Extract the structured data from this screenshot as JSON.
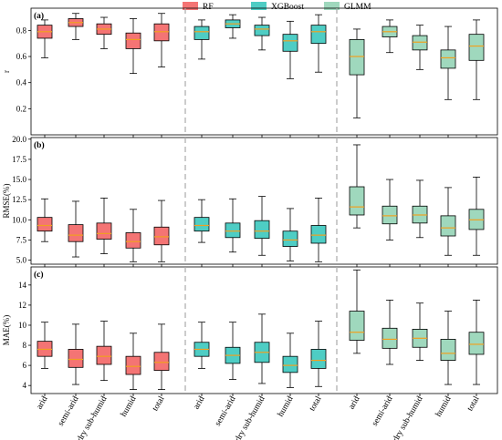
{
  "legend": [
    {
      "name": "RF",
      "color": "#f47474"
    },
    {
      "name": "XGBoost",
      "color": "#4ecdc4"
    },
    {
      "name": "GLMM",
      "color": "#9fd8bd"
    }
  ],
  "colors": {
    "median": "#f0a020",
    "separator": "#aaaaaa",
    "frame": "#000000"
  },
  "categories": [
    "arid",
    "semi-arid",
    "dry sub-humid",
    "humid",
    "total"
  ],
  "chart_data": [
    {
      "type": "box",
      "panel": "(a)",
      "ylabel": "r",
      "ylim": [
        0.0,
        0.97
      ],
      "yticks": [
        0.2,
        0.4,
        0.6,
        0.8
      ],
      "tick_labels": [
        "0.2",
        "0.4",
        "0.6",
        "0.8"
      ],
      "categories": [
        "arid",
        "semi-arid",
        "dry sub-humid",
        "humid",
        "total"
      ],
      "series": [
        {
          "name": "RF",
          "boxes": [
            {
              "min": 0.59,
              "q1": 0.74,
              "median": 0.79,
              "q3": 0.84,
              "max": 0.88
            },
            {
              "min": 0.73,
              "q1": 0.83,
              "median": 0.86,
              "q3": 0.89,
              "max": 0.93
            },
            {
              "min": 0.66,
              "q1": 0.77,
              "median": 0.81,
              "q3": 0.85,
              "max": 0.9
            },
            {
              "min": 0.47,
              "q1": 0.66,
              "median": 0.73,
              "q3": 0.78,
              "max": 0.89
            },
            {
              "min": 0.52,
              "q1": 0.72,
              "median": 0.79,
              "q3": 0.85,
              "max": 0.93
            }
          ]
        },
        {
          "name": "XGBoost",
          "boxes": [
            {
              "min": 0.58,
              "q1": 0.73,
              "median": 0.79,
              "q3": 0.83,
              "max": 0.88
            },
            {
              "min": 0.74,
              "q1": 0.82,
              "median": 0.85,
              "q3": 0.88,
              "max": 0.92
            },
            {
              "min": 0.65,
              "q1": 0.76,
              "median": 0.81,
              "q3": 0.84,
              "max": 0.9
            },
            {
              "min": 0.43,
              "q1": 0.64,
              "median": 0.72,
              "q3": 0.77,
              "max": 0.87
            },
            {
              "min": 0.48,
              "q1": 0.7,
              "median": 0.79,
              "q3": 0.84,
              "max": 0.92
            }
          ]
        },
        {
          "name": "GLMM",
          "boxes": [
            {
              "min": 0.13,
              "q1": 0.46,
              "median": 0.6,
              "q3": 0.73,
              "max": 0.81
            },
            {
              "min": 0.63,
              "q1": 0.75,
              "median": 0.79,
              "q3": 0.83,
              "max": 0.88
            },
            {
              "min": 0.5,
              "q1": 0.65,
              "median": 0.71,
              "q3": 0.76,
              "max": 0.84
            },
            {
              "min": 0.27,
              "q1": 0.51,
              "median": 0.59,
              "q3": 0.65,
              "max": 0.83
            },
            {
              "min": 0.27,
              "q1": 0.57,
              "median": 0.68,
              "q3": 0.77,
              "max": 0.88
            }
          ]
        }
      ]
    },
    {
      "type": "box",
      "panel": "(b)",
      "ylabel": "RMSE(%)",
      "ylim": [
        4.5,
        20.2
      ],
      "yticks": [
        5.0,
        7.5,
        10.0,
        12.5,
        15.0,
        17.5,
        20.0
      ],
      "tick_labels": [
        "5.0",
        "7.5",
        "10.0",
        "12.5",
        "15.0",
        "17.5",
        "20.0"
      ],
      "categories": [
        "arid",
        "semi-arid",
        "dry sub-humid",
        "humid",
        "total"
      ],
      "series": [
        {
          "name": "RF",
          "boxes": [
            {
              "min": 7.3,
              "q1": 8.6,
              "median": 9.3,
              "q3": 10.3,
              "max": 12.6
            },
            {
              "min": 5.4,
              "q1": 7.3,
              "median": 8.1,
              "q3": 9.4,
              "max": 12.3
            },
            {
              "min": 5.8,
              "q1": 7.6,
              "median": 8.3,
              "q3": 9.6,
              "max": 12.7
            },
            {
              "min": 4.8,
              "q1": 6.5,
              "median": 7.3,
              "q3": 8.4,
              "max": 11.3
            },
            {
              "min": 4.8,
              "q1": 6.9,
              "median": 7.9,
              "q3": 9.1,
              "max": 12.4
            }
          ]
        },
        {
          "name": "XGBoost",
          "boxes": [
            {
              "min": 7.2,
              "q1": 8.6,
              "median": 9.3,
              "q3": 10.3,
              "max": 12.5
            },
            {
              "min": 6.0,
              "q1": 7.8,
              "median": 8.6,
              "q3": 9.6,
              "max": 12.6
            },
            {
              "min": 5.6,
              "q1": 7.7,
              "median": 8.6,
              "q3": 9.9,
              "max": 12.9
            },
            {
              "min": 4.9,
              "q1": 6.7,
              "median": 7.5,
              "q3": 8.6,
              "max": 11.4
            },
            {
              "min": 4.8,
              "q1": 7.1,
              "median": 8.1,
              "q3": 9.3,
              "max": 12.7
            }
          ]
        },
        {
          "name": "GLMM",
          "boxes": [
            {
              "min": 9.0,
              "q1": 10.6,
              "median": 11.6,
              "q3": 14.1,
              "max": 19.3
            },
            {
              "min": 7.5,
              "q1": 9.5,
              "median": 10.5,
              "q3": 11.7,
              "max": 15.0
            },
            {
              "min": 7.8,
              "q1": 9.6,
              "median": 10.6,
              "q3": 11.7,
              "max": 14.9
            },
            {
              "min": 5.6,
              "q1": 8.0,
              "median": 9.0,
              "q3": 10.5,
              "max": 14.0
            },
            {
              "min": 5.6,
              "q1": 8.8,
              "median": 10.0,
              "q3": 11.3,
              "max": 15.3
            }
          ]
        }
      ]
    },
    {
      "type": "box",
      "panel": "(c)",
      "ylabel": "MAE(%)",
      "ylim": [
        3.2,
        15.8
      ],
      "yticks": [
        4,
        6,
        8,
        10,
        12,
        14
      ],
      "tick_labels": [
        "4",
        "6",
        "8",
        "10",
        "12",
        "14"
      ],
      "categories": [
        "arid",
        "semi-arid",
        "dry sub-humid",
        "humid",
        "total"
      ],
      "series": [
        {
          "name": "RF",
          "boxes": [
            {
              "min": 5.7,
              "q1": 6.9,
              "median": 7.6,
              "q3": 8.4,
              "max": 10.3
            },
            {
              "min": 4.1,
              "q1": 5.8,
              "median": 6.6,
              "q3": 7.6,
              "max": 10.1
            },
            {
              "min": 4.5,
              "q1": 6.1,
              "median": 6.9,
              "q3": 7.9,
              "max": 10.4
            },
            {
              "min": 3.6,
              "q1": 5.1,
              "median": 5.9,
              "q3": 6.9,
              "max": 9.2
            },
            {
              "min": 3.6,
              "q1": 5.5,
              "median": 6.3,
              "q3": 7.3,
              "max": 10.1
            }
          ]
        },
        {
          "name": "XGBoost",
          "boxes": [
            {
              "min": 5.7,
              "q1": 6.9,
              "median": 7.6,
              "q3": 8.3,
              "max": 10.3
            },
            {
              "min": 4.6,
              "q1": 6.2,
              "median": 7.0,
              "q3": 7.8,
              "max": 10.3
            },
            {
              "min": 4.2,
              "q1": 6.3,
              "median": 7.3,
              "q3": 8.3,
              "max": 11.1
            },
            {
              "min": 3.8,
              "q1": 5.3,
              "median": 6.0,
              "q3": 6.9,
              "max": 9.2
            },
            {
              "min": 3.9,
              "q1": 5.7,
              "median": 6.5,
              "q3": 7.6,
              "max": 10.4
            }
          ]
        },
        {
          "name": "GLMM",
          "boxes": [
            {
              "min": 7.2,
              "q1": 8.5,
              "median": 9.3,
              "q3": 11.4,
              "max": 15.5
            },
            {
              "min": 6.1,
              "q1": 7.7,
              "median": 8.6,
              "q3": 9.7,
              "max": 12.5
            },
            {
              "min": 6.5,
              "q1": 7.8,
              "median": 8.7,
              "q3": 9.6,
              "max": 12.2
            },
            {
              "min": 4.1,
              "q1": 6.5,
              "median": 7.2,
              "q3": 8.6,
              "max": 11.4
            },
            {
              "min": 4.1,
              "q1": 7.1,
              "median": 8.1,
              "q3": 9.3,
              "max": 12.5
            }
          ]
        }
      ]
    }
  ]
}
